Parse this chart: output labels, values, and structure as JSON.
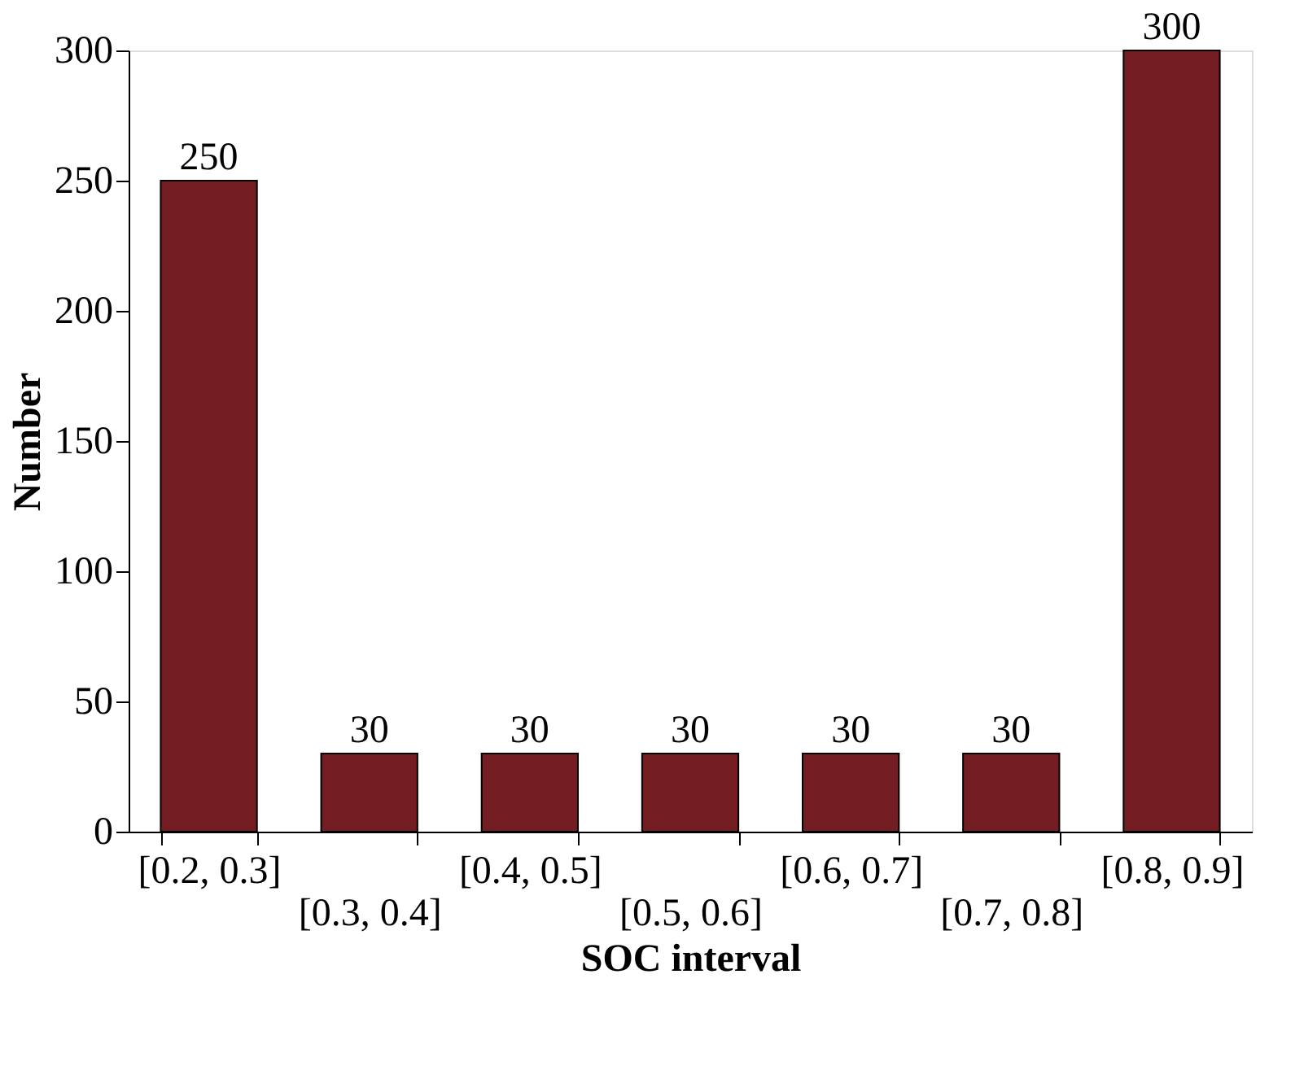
{
  "chart_data": {
    "type": "bar",
    "xlabel": "SOC interval",
    "ylabel": "Number",
    "categories": [
      "[0.2, 0.3]",
      "[0.3, 0.4]",
      "[0.4, 0.5]",
      "[0.5, 0.6]",
      "[0.6, 0.7]",
      "[0.7, 0.8]",
      "[0.8, 0.9]"
    ],
    "values": [
      250,
      30,
      30,
      30,
      30,
      30,
      300
    ],
    "color": "#731c22",
    "ylim": [
      0,
      300
    ],
    "yticks": [
      0,
      50,
      100,
      150,
      200,
      250,
      300
    ],
    "grid": false,
    "data_labels": true
  }
}
